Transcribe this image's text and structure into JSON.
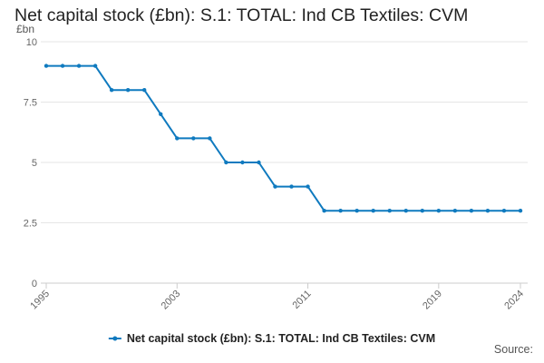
{
  "page": {
    "title": "Net capital stock (£bn): S.1: TOTAL: Ind CB Textiles: CVM",
    "source_label": "Source:"
  },
  "colors": {
    "series": "#0f7abf",
    "grid": "#e6e6e6",
    "axis": "#cccccc",
    "text": "#222222",
    "tick_text": "#666666"
  },
  "chart_data": {
    "type": "line",
    "title": "Net capital stock (£bn): S.1: TOTAL: Ind CB Textiles: CVM",
    "ylabel": "£bn",
    "xlabel": "",
    "ylim": [
      0,
      10
    ],
    "xlim": [
      1995,
      2024
    ],
    "y_ticks": [
      {
        "value": 0,
        "label": "0"
      },
      {
        "value": 2.5,
        "label": "2.5"
      },
      {
        "value": 5,
        "label": "5"
      },
      {
        "value": 7.5,
        "label": "7.5"
      },
      {
        "value": 10,
        "label": "10"
      }
    ],
    "x_ticks": [
      {
        "value": 1995,
        "label": "1995"
      },
      {
        "value": 2003,
        "label": "2003"
      },
      {
        "value": 2011,
        "label": "2011"
      },
      {
        "value": 2019,
        "label": "2019"
      },
      {
        "value": 2024,
        "label": "2024"
      }
    ],
    "grid": true,
    "legend": "bottom",
    "x": [
      1995,
      1996,
      1997,
      1998,
      1999,
      2000,
      2001,
      2002,
      2003,
      2004,
      2005,
      2006,
      2007,
      2008,
      2009,
      2010,
      2011,
      2012,
      2013,
      2014,
      2015,
      2016,
      2017,
      2018,
      2019,
      2020,
      2021,
      2022,
      2023,
      2024
    ],
    "series": [
      {
        "name": "Net capital stock (£bn): S.1: TOTAL: Ind CB Textiles: CVM",
        "values": [
          9,
          9,
          9,
          9,
          8,
          8,
          8,
          7,
          6,
          6,
          6,
          5,
          5,
          5,
          4,
          4,
          4,
          3,
          3,
          3,
          3,
          3,
          3,
          3,
          3,
          3,
          3,
          3,
          3,
          3
        ]
      }
    ]
  }
}
